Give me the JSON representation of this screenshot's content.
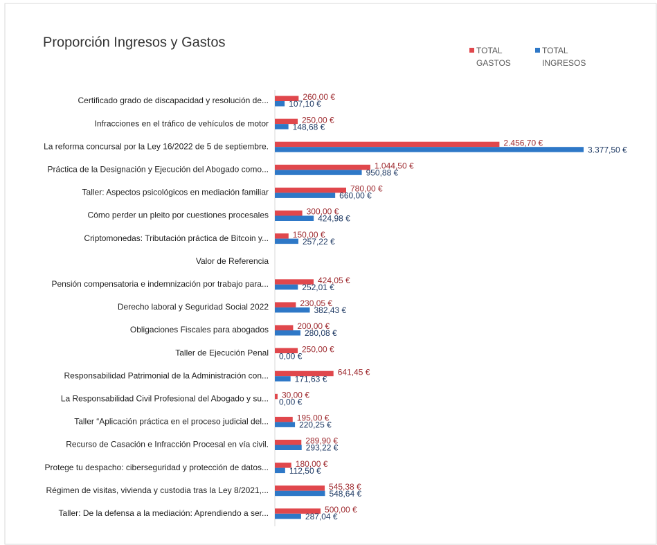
{
  "chart_data": {
    "type": "hbar",
    "title": "Proporción Ingresos y Gastos",
    "categories": [
      "Certificado grado de discapacidad y resolución de...",
      "Infracciones en el tráfico de vehículos de motor",
      "La reforma concursal por la Ley 16/2022 de 5 de septiembre.",
      "Práctica de la Designación y Ejecución del Abogado como...",
      "Taller: Aspectos psicológicos en mediación familiar",
      "Cómo perder un pleito por cuestiones procesales",
      "Criptomonedas: Tributación práctica de Bitcoin y...",
      "Valor de Referencia",
      "Pensión compensatoria e indemnización por trabajo para...",
      "Derecho laboral y Seguridad Social 2022",
      "Obligaciones Fiscales para abogados",
      "Taller de Ejecución Penal",
      "Responsabilidad Patrimonial de la Administración con...",
      "La Responsabilidad Civil Profesional del Abogado y su...",
      "Taller “Aplicación práctica en el proceso judicial del...",
      "Recurso de Casación e Infracción Procesal en vía civil.",
      "Protege tu despacho: ciberseguridad y protección de datos...",
      "Régimen de visitas, vivienda y custodia tras la Ley 8/2021,...",
      "Taller: De la defensa a la mediación: Aprendiendo a ser..."
    ],
    "series": [
      {
        "name": "TOTAL GASTOS",
        "color": "#e0474c",
        "label_color": "#9e2a2f",
        "values": [
          260,
          250,
          2456.7,
          1044.5,
          780,
          300,
          150,
          null,
          424.05,
          230.05,
          200,
          250,
          641.45,
          30,
          195,
          289.9,
          180,
          545.38,
          500
        ],
        "value_labels": [
          "260,00 €",
          "250,00 €",
          "2.456,70 €",
          "1.044,50 €",
          "780,00 €",
          "300,00 €",
          "150,00 €",
          null,
          "424,05 €",
          "230,05 €",
          "200,00 €",
          "250,00 €",
          "641,45 €",
          "30,00 €",
          "195,00 €",
          "289,90 €",
          "180,00 €",
          "545,38 €",
          "500,00 €"
        ]
      },
      {
        "name": "TOTAL INGRESOS",
        "color": "#2e78c7",
        "label_color": "#1f3a64",
        "values": [
          107.1,
          148.68,
          3377.5,
          950.88,
          660,
          424.98,
          257.22,
          null,
          252.01,
          382.43,
          280.08,
          0,
          171.63,
          0,
          220.25,
          293.22,
          112.5,
          548.64,
          287.04
        ],
        "value_labels": [
          "107,10 €",
          "148,68 €",
          "3.377,50 €",
          "950,88 €",
          "660,00 €",
          "424,98 €",
          "257,22 €",
          null,
          "252,01 €",
          "382,43 €",
          "280,08 €",
          "0,00 €",
          "171,63 €",
          "0,00 €",
          "220,25 €",
          "293,22 €",
          "112,50 €",
          "548,64 €",
          "287,04 €"
        ]
      }
    ],
    "legend": "top-right"
  }
}
